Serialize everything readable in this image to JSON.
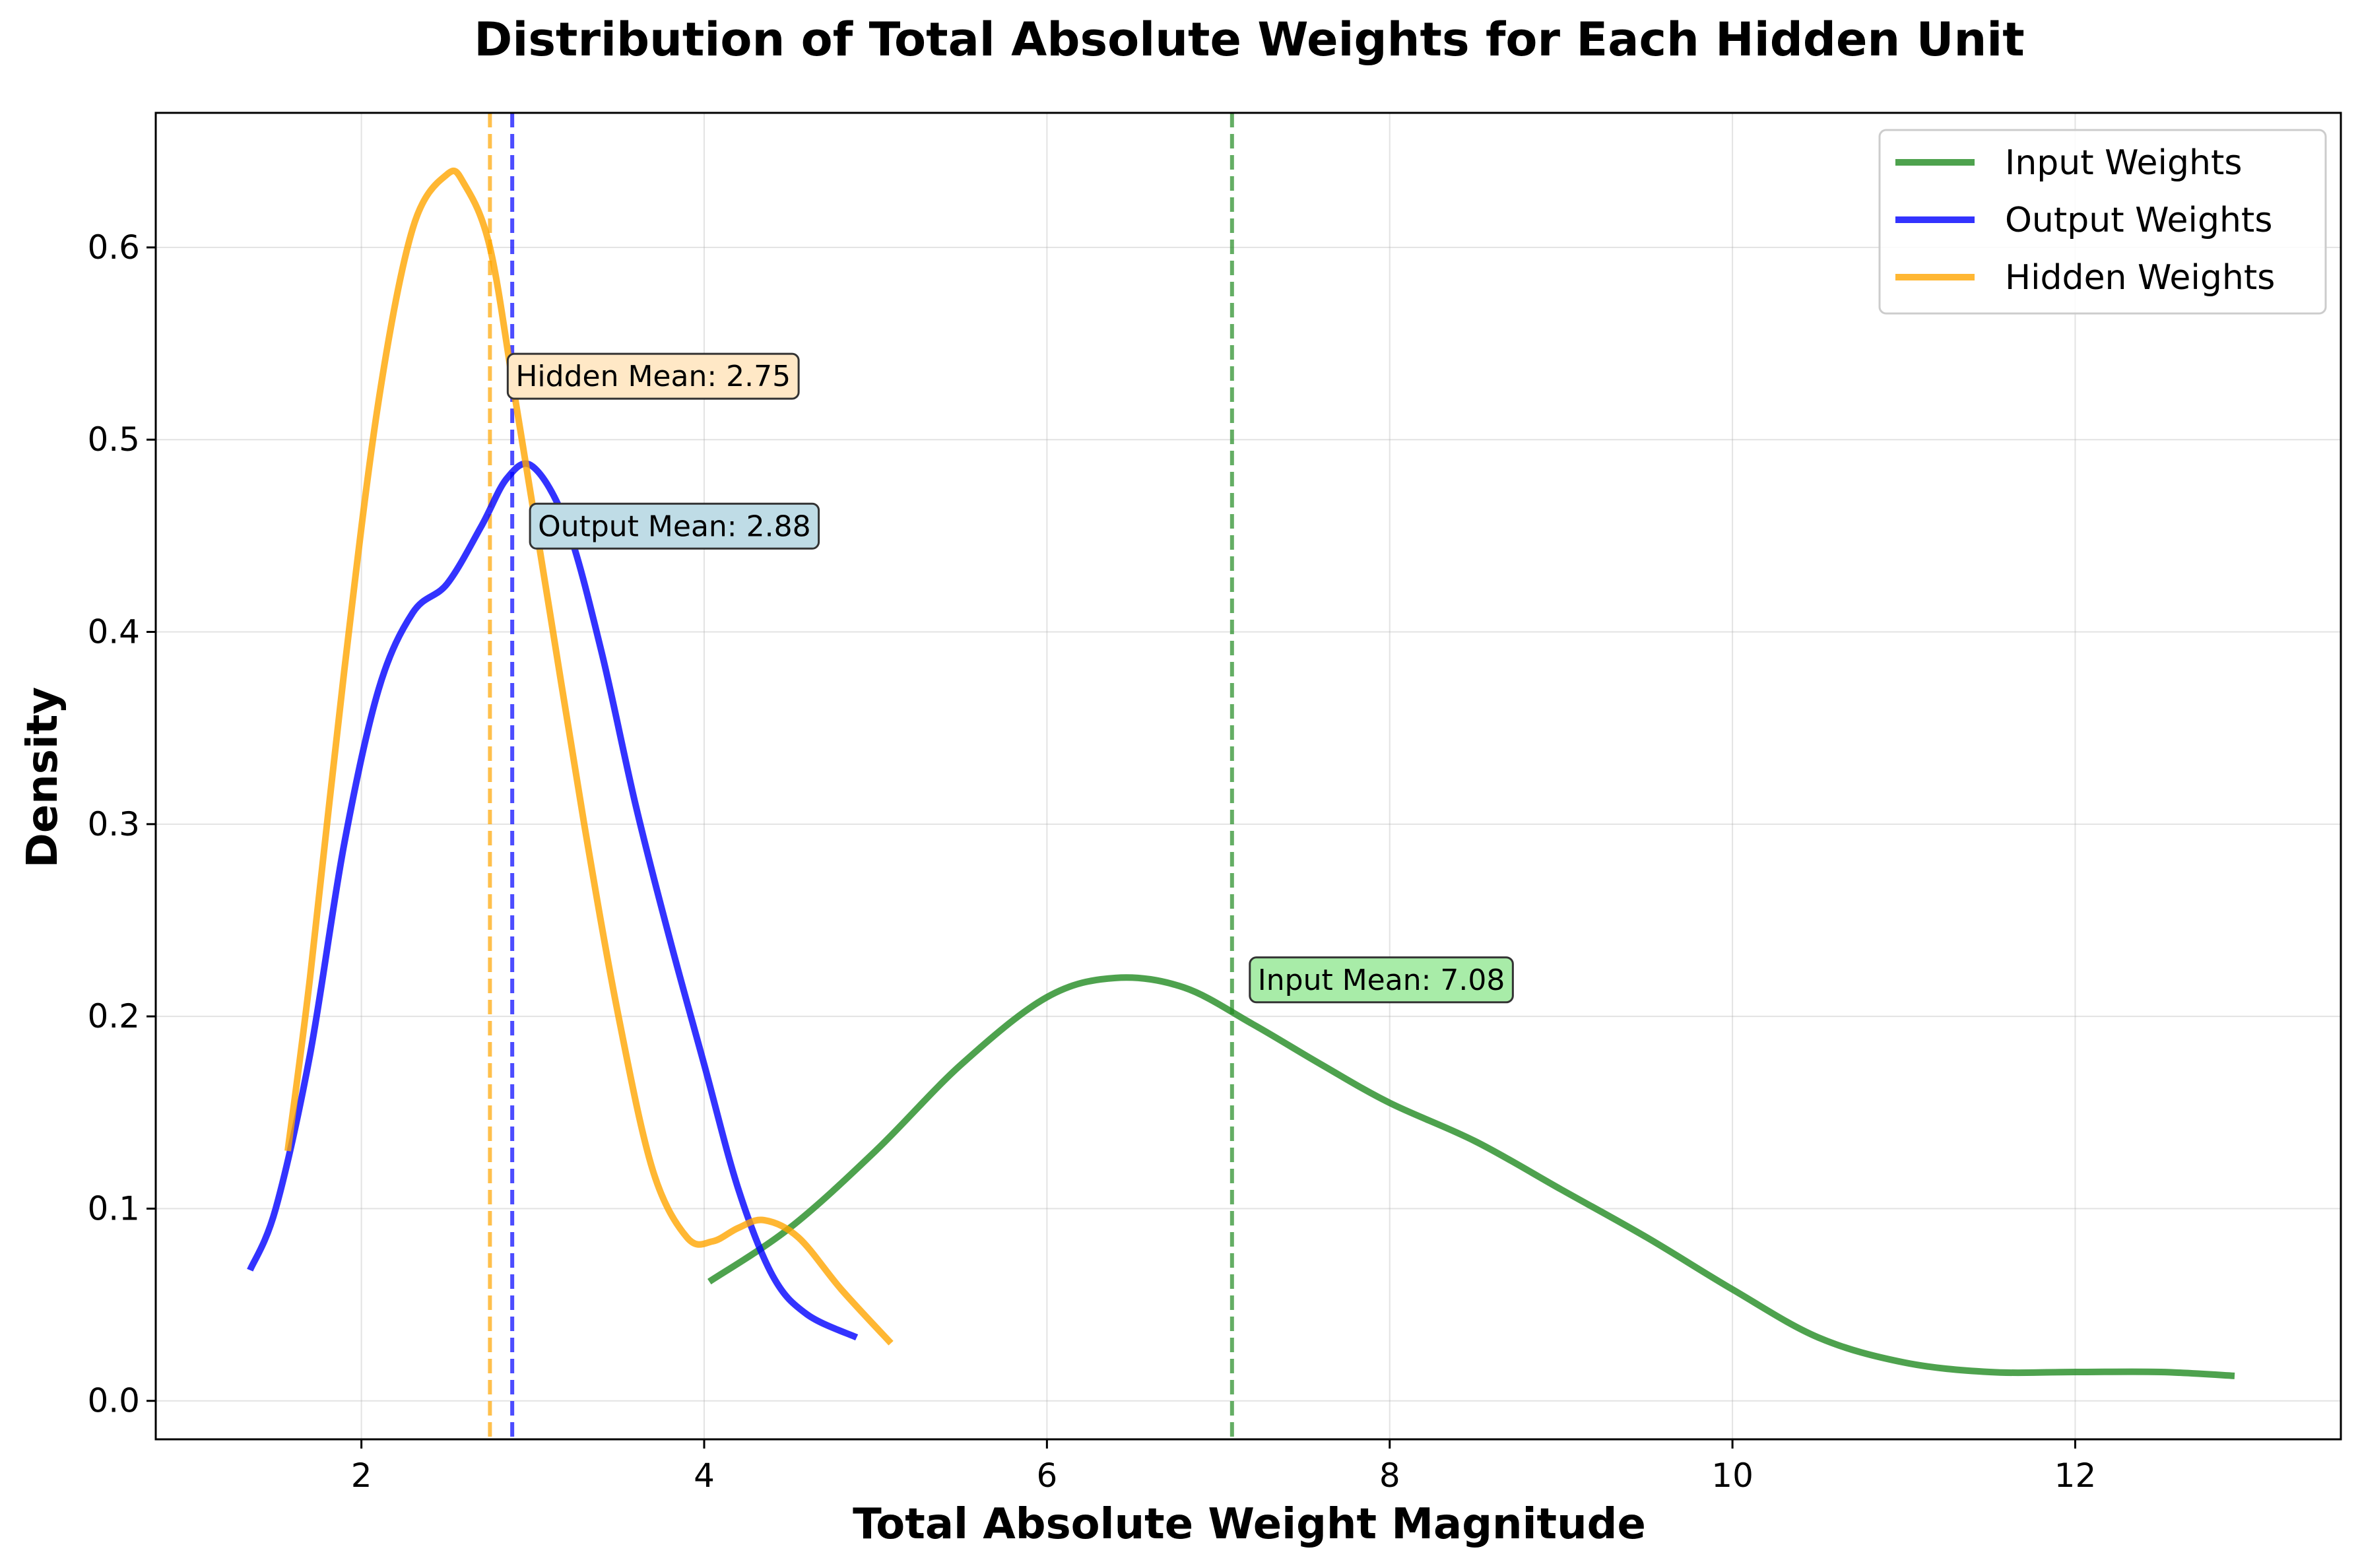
{
  "chart_data": {
    "type": "line",
    "title": "Distribution of Total Absolute Weights for Each Hidden Unit",
    "xlabel": "Total Absolute Weight Magnitude",
    "ylabel": "Density",
    "xlim": [
      0.8,
      13.55
    ],
    "ylim": [
      -0.02,
      0.67
    ],
    "x_ticks": [
      2,
      4,
      6,
      8,
      10,
      12
    ],
    "y_ticks": [
      0.0,
      0.1,
      0.2,
      0.3,
      0.4,
      0.5,
      0.6
    ],
    "grid": true,
    "legend_position": "top-right",
    "series": [
      {
        "name": "Input Weights",
        "color": "#228B22",
        "x": [
          4.03,
          4.5,
          5.0,
          5.5,
          6.0,
          6.4,
          6.8,
          7.2,
          7.6,
          8.0,
          8.5,
          9.0,
          9.5,
          10.0,
          10.5,
          11.0,
          11.5,
          12.0,
          12.5,
          12.93
        ],
        "y": [
          0.062,
          0.09,
          0.13,
          0.175,
          0.21,
          0.22,
          0.215,
          0.196,
          0.175,
          0.155,
          0.135,
          0.11,
          0.085,
          0.058,
          0.033,
          0.02,
          0.015,
          0.015,
          0.015,
          0.013
        ]
      },
      {
        "name": "Output Weights",
        "color": "#0000FF",
        "x": [
          1.35,
          1.5,
          1.7,
          1.9,
          2.1,
          2.3,
          2.5,
          2.7,
          2.85,
          3.0,
          3.2,
          3.4,
          3.6,
          3.8,
          4.0,
          4.2,
          4.4,
          4.6,
          4.89
        ],
        "y": [
          0.068,
          0.1,
          0.18,
          0.29,
          0.37,
          0.41,
          0.425,
          0.455,
          0.48,
          0.486,
          0.455,
          0.39,
          0.31,
          0.24,
          0.175,
          0.11,
          0.065,
          0.045,
          0.033
        ]
      },
      {
        "name": "Hidden Weights",
        "color": "#FFA500",
        "x": [
          1.57,
          1.7,
          1.9,
          2.1,
          2.3,
          2.5,
          2.6,
          2.75,
          2.9,
          3.1,
          3.3,
          3.5,
          3.7,
          3.9,
          4.05,
          4.2,
          4.35,
          4.55,
          4.8,
          5.09
        ],
        "y": [
          0.13,
          0.22,
          0.38,
          0.52,
          0.61,
          0.638,
          0.633,
          0.6,
          0.52,
          0.41,
          0.3,
          0.2,
          0.12,
          0.085,
          0.083,
          0.09,
          0.094,
          0.085,
          0.058,
          0.03
        ]
      }
    ],
    "reference_lines": [
      {
        "x": 7.08,
        "color": "#228B22"
      },
      {
        "x": 2.88,
        "color": "#0000FF"
      },
      {
        "x": 2.75,
        "color": "#FFA500"
      }
    ],
    "annotations": [
      {
        "text": "Hidden Mean: 2.75",
        "x": 2.9,
        "y": 0.533,
        "fill": "#FFE8C6"
      },
      {
        "text": "Output Mean: 2.88",
        "x": 3.03,
        "y": 0.455,
        "fill": "#BFDCE6"
      },
      {
        "text": "Input Mean: 7.08",
        "x": 7.23,
        "y": 0.219,
        "fill": "#A8ECA8"
      }
    ]
  }
}
